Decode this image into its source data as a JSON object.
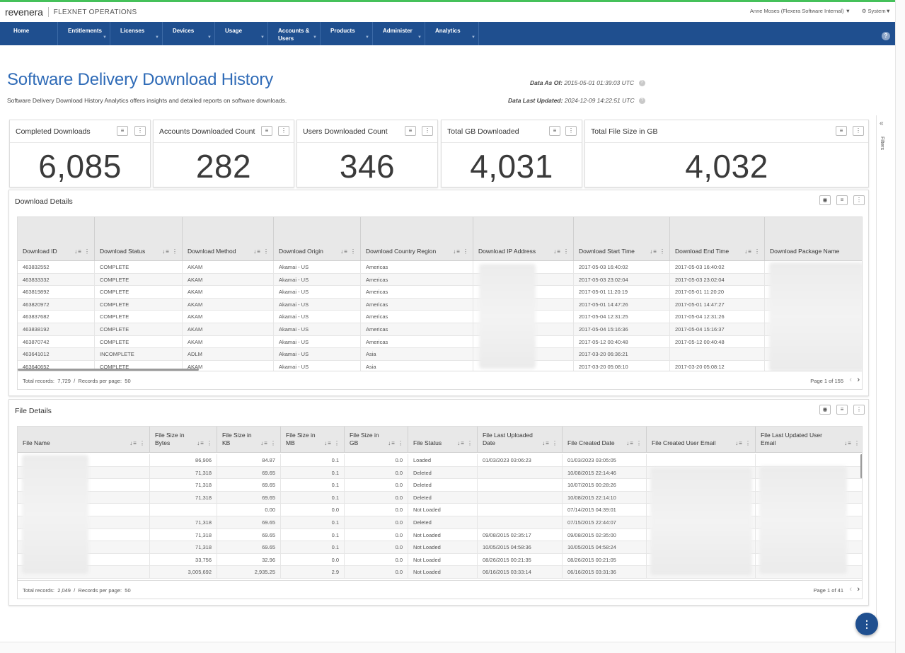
{
  "header": {
    "brand": "revenera",
    "product": "FLEXNET OPERATIONS",
    "user": "Anne Moses (Flexera Software Internal) ▼",
    "system": "⚙ System▼"
  },
  "nav": {
    "items": [
      {
        "label": "Home"
      },
      {
        "label": "Entitlements"
      },
      {
        "label": "Licenses"
      },
      {
        "label": "Devices"
      },
      {
        "label": "Usage"
      },
      {
        "label": "Accounts &\nUsers"
      },
      {
        "label": "Products"
      },
      {
        "label": "Administer"
      },
      {
        "label": "Analytics"
      }
    ],
    "help": "?"
  },
  "page": {
    "title": "Software Delivery Download History",
    "description": "Software Delivery Download History Analytics offers insights and detailed reports on software downloads.",
    "data_as_of_label": "Data As Of:",
    "data_as_of_value": "2015-05-01 01:39:03 UTC",
    "data_last_updated_label": "Data Last Updated:",
    "data_last_updated_value": "2024-12-09 14:22:51 UTC"
  },
  "filters": {
    "label": "Filters",
    "chevron": "«"
  },
  "kpis": [
    {
      "title": "Completed Downloads",
      "value": "6,085"
    },
    {
      "title": "Accounts Downloaded Count",
      "value": "282"
    },
    {
      "title": "Users Downloaded Count",
      "value": "346"
    },
    {
      "title": "Total GB Downloaded",
      "value": "4,031"
    },
    {
      "title": "Total File Size in GB",
      "value": "4,032"
    }
  ],
  "download_details": {
    "title": "Download Details",
    "columns": [
      "Download ID",
      "Download Status",
      "Download Method",
      "Download Origin",
      "Download Country Region",
      "Download IP Address",
      "Download Start Time",
      "Download End Time",
      "Download Package Name"
    ],
    "rows": [
      [
        "463832552",
        "COMPLETE",
        "AKAM",
        "Akamai - US",
        "Americas",
        "",
        "2017-05-03 16:40:02",
        "2017-05-03 16:40:02",
        ""
      ],
      [
        "463833332",
        "COMPLETE",
        "AKAM",
        "Akamai - US",
        "Americas",
        "",
        "2017-05-03 23:02:04",
        "2017-05-03 23:02:04",
        ""
      ],
      [
        "463819892",
        "COMPLETE",
        "AKAM",
        "Akamai - US",
        "Americas",
        "",
        "2017-05-01 11:20:19",
        "2017-05-01 11:20:20",
        ""
      ],
      [
        "463820972",
        "COMPLETE",
        "AKAM",
        "Akamai - US",
        "Americas",
        "",
        "2017-05-01 14:47:26",
        "2017-05-01 14:47:27",
        ""
      ],
      [
        "463837682",
        "COMPLETE",
        "AKAM",
        "Akamai - US",
        "Americas",
        "",
        "2017-05-04 12:31:25",
        "2017-05-04 12:31:26",
        ""
      ],
      [
        "463838192",
        "COMPLETE",
        "AKAM",
        "Akamai - US",
        "Americas",
        "",
        "2017-05-04 15:16:36",
        "2017-05-04 15:16:37",
        ""
      ],
      [
        "463870742",
        "COMPLETE",
        "AKAM",
        "Akamai - US",
        "Americas",
        "",
        "2017-05-12 00:40:48",
        "2017-05-12 00:40:48",
        ""
      ],
      [
        "463641012",
        "INCOMPLETE",
        "ADLM",
        "Akamai - US",
        "Asia",
        "",
        "2017-03-20 06:36:21",
        "",
        ""
      ],
      [
        "463640652",
        "COMPLETE",
        "AKAM",
        "Akamai - US",
        "Asia",
        "",
        "2017-03-20 05:08:10",
        "2017-03-20 05:08:12",
        ""
      ]
    ],
    "footer": {
      "total_label": "Total records:",
      "total_value": "7,729",
      "sep": "/",
      "per_page_label": "Records per page:",
      "per_page_value": "50",
      "page": "Page 1 of 155"
    }
  },
  "file_details": {
    "title": "File Details",
    "columns": [
      "File Name",
      "File Size in Bytes",
      "File Size in KB",
      "File Size in MB",
      "File Size in GB",
      "File Status",
      "File Last Uploaded Date",
      "File Created Date",
      "File Created User Email",
      "File Last Updated User Email"
    ],
    "rows": [
      [
        "",
        "86,906",
        "84.87",
        "0.1",
        "0.0",
        "Loaded",
        "01/03/2023 03:06:23",
        "01/03/2023 03:05:05",
        "",
        ""
      ],
      [
        "",
        "71,318",
        "69.65",
        "0.1",
        "0.0",
        "Deleted",
        "",
        "10/08/2015 22:14:46",
        "",
        ""
      ],
      [
        "",
        "71,318",
        "69.65",
        "0.1",
        "0.0",
        "Deleted",
        "",
        "10/07/2015 00:28:26",
        "",
        ""
      ],
      [
        "",
        "71,318",
        "69.65",
        "0.1",
        "0.0",
        "Deleted",
        "",
        "10/08/2015 22:14:10",
        "",
        ""
      ],
      [
        "",
        "",
        "0.00",
        "0.0",
        "0.0",
        "Not Loaded",
        "",
        "07/14/2015 04:39:01",
        "",
        ""
      ],
      [
        "",
        "71,318",
        "69.65",
        "0.1",
        "0.0",
        "Deleted",
        "",
        "07/15/2015 22:44:07",
        "",
        ""
      ],
      [
        "",
        "71,318",
        "69.65",
        "0.1",
        "0.0",
        "Not Loaded",
        "09/08/2015 02:35:17",
        "09/08/2015 02:35:00",
        "",
        ""
      ],
      [
        "",
        "71,318",
        "69.65",
        "0.1",
        "0.0",
        "Not Loaded",
        "10/05/2015 04:58:36",
        "10/05/2015 04:58:24",
        "",
        ""
      ],
      [
        "",
        "33,756",
        "32.96",
        "0.0",
        "0.0",
        "Not Loaded",
        "08/26/2015 00:21:35",
        "08/26/2015 00:21:05",
        "",
        ""
      ],
      [
        "",
        "3,005,692",
        "2,935.25",
        "2.9",
        "0.0",
        "Not Loaded",
        "06/16/2015 03:33:14",
        "06/16/2015 03:31:36",
        "",
        ""
      ]
    ],
    "footer": {
      "total_label": "Total records:",
      "total_value": "2,049",
      "sep": "/",
      "per_page_label": "Records per page:",
      "per_page_value": "50",
      "page": "Page 1 of 41"
    }
  },
  "icons": {
    "filter": "≡",
    "kebab": "⋮",
    "eye": "◉",
    "sort": "↓≡",
    "prev": "‹",
    "next": "›",
    "fab": "⋮"
  },
  "colors": {
    "nav_bg": "#1f4f8f",
    "accent_bar": "#45c15a",
    "title_blue": "#2f6bb7"
  }
}
